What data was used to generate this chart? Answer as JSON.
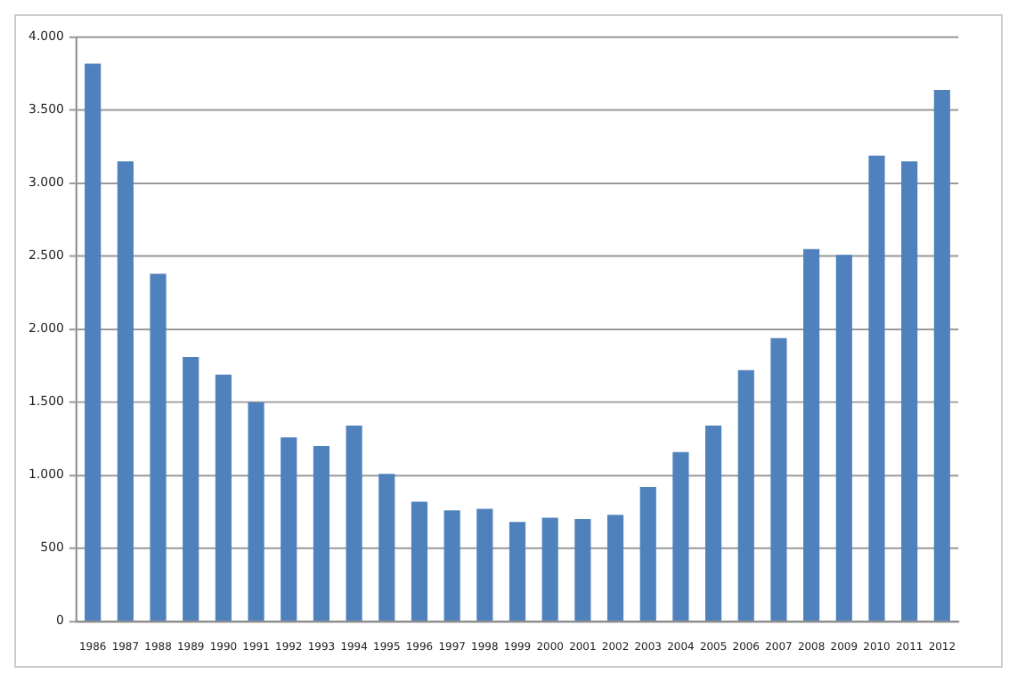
{
  "chart_data": {
    "type": "bar",
    "categories": [
      "1986",
      "1987",
      "1988",
      "1989",
      "1990",
      "1991",
      "1992",
      "1993",
      "1994",
      "1995",
      "1996",
      "1997",
      "1998",
      "1999",
      "2000",
      "2001",
      "2002",
      "2003",
      "2004",
      "2005",
      "2006",
      "2007",
      "2008",
      "2009",
      "2010",
      "2011",
      "2012"
    ],
    "values": [
      3820,
      3150,
      2380,
      1810,
      1690,
      1500,
      1260,
      1200,
      1340,
      1010,
      820,
      760,
      770,
      680,
      710,
      700,
      730,
      920,
      1160,
      1340,
      1720,
      1940,
      2550,
      2510,
      3190,
      3150,
      3640
    ],
    "color": "#4f81bd",
    "ylim": [
      0,
      4000
    ],
    "yticks": [
      0,
      {
        "value": 500,
        "label": "500"
      },
      {
        "value": 1000,
        "label": "1.000"
      },
      {
        "value": 1500,
        "label": "1.500"
      },
      {
        "value": 2000,
        "label": "2.000"
      },
      {
        "value": 2500,
        "label": "2.500"
      },
      {
        "value": 3000,
        "label": "3.000"
      },
      {
        "value": 3500,
        "label": "3.500"
      },
      {
        "value": 4000,
        "label": "4.000"
      }
    ],
    "grid": "y",
    "legend": false
  }
}
